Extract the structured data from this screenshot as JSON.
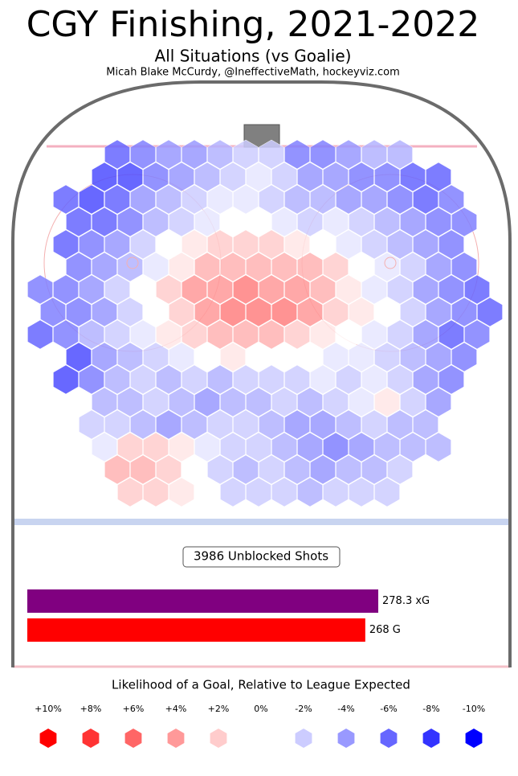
{
  "chart_data": [
    {
      "type": "hexbin",
      "title": "CGY Finishing, 2021-2022",
      "subtitle": "All Situations (vs Goalie)",
      "credit": "Micah Blake McCurdy, @IneffectiveMath, hockeyviz.com",
      "rows": [
        [
          null,
          null,
          null,
          -6,
          -5,
          -4,
          -4,
          -3,
          -2,
          -2,
          -5,
          -5,
          -4,
          -3,
          -3,
          null,
          null,
          null
        ],
        [
          null,
          null,
          -7,
          -7,
          -5,
          -4,
          -3,
          -2,
          -1,
          -2,
          -4,
          -4,
          -5,
          -5,
          -6,
          -6,
          null,
          null
        ],
        [
          null,
          -6,
          -7,
          -6,
          -4,
          -3,
          -2,
          -1,
          -1,
          -2,
          -3,
          -3,
          -4,
          -4,
          -5,
          -6,
          -5,
          null
        ],
        [
          null,
          -6,
          -6,
          -5,
          -3,
          -2,
          -1,
          0,
          0,
          -1,
          -2,
          -1,
          -2,
          -3,
          -4,
          -5,
          -5,
          null
        ],
        [
          null,
          -6,
          -5,
          -4,
          -2,
          0,
          1,
          2,
          2,
          2,
          1,
          0,
          -1,
          -2,
          -3,
          -4,
          -5,
          null
        ],
        [
          null,
          -5,
          -4,
          -3,
          -1,
          1,
          3,
          3,
          3,
          3,
          3,
          2,
          0,
          -1,
          -2,
          -4,
          -5,
          null
        ],
        [
          -5,
          -5,
          -4,
          -2,
          0,
          2,
          4,
          4,
          5,
          4,
          4,
          3,
          1,
          -1,
          -2,
          -4,
          -5,
          -6
        ],
        [
          -5,
          -5,
          -4,
          -2,
          0,
          2,
          4,
          5,
          5,
          5,
          4,
          2,
          1,
          0,
          -2,
          -4,
          -5,
          -6
        ],
        [
          -6,
          -5,
          -3,
          -2,
          -1,
          1,
          2,
          3,
          3,
          3,
          2,
          1,
          0,
          -1,
          -2,
          -4,
          -6,
          -5
        ],
        [
          null,
          -7,
          -4,
          -3,
          -2,
          -1,
          0,
          1,
          0,
          0,
          0,
          -1,
          -1,
          -2,
          -3,
          -4,
          -5,
          null
        ],
        [
          null,
          -7,
          -5,
          -3,
          -2,
          -3,
          -2,
          -3,
          -2,
          -2,
          -2,
          -1,
          -2,
          -1,
          -2,
          -4,
          -5,
          null
        ],
        [
          null,
          null,
          -3,
          -3,
          -2,
          -3,
          -4,
          -3,
          -3,
          -2,
          -3,
          -2,
          -1,
          1,
          -2,
          -4,
          null,
          null
        ],
        [
          null,
          null,
          -2,
          -2,
          -3,
          -4,
          -3,
          -2,
          -2,
          -3,
          -4,
          -4,
          -3,
          -2,
          -3,
          -3,
          null,
          null
        ],
        [
          null,
          null,
          -1,
          2,
          2,
          1,
          -1,
          -2,
          -2,
          -3,
          -4,
          -5,
          -4,
          -3,
          -3,
          -3,
          null,
          null
        ],
        [
          null,
          null,
          null,
          3,
          3,
          2,
          0,
          -2,
          -3,
          -2,
          -3,
          -4,
          -3,
          -3,
          -2,
          null,
          null,
          null
        ],
        [
          null,
          null,
          null,
          2,
          2,
          1,
          0,
          -2,
          -2,
          -2,
          -3,
          -2,
          -2,
          -2,
          null,
          null,
          null,
          null
        ]
      ],
      "legend_title": "Likelihood of a Goal, Relative to League Expected",
      "scale": [
        {
          "value": 10,
          "label": "+10%",
          "color": "#ff0000"
        },
        {
          "value": 8,
          "label": "+8%",
          "color": "#ff3333"
        },
        {
          "value": 6,
          "label": "+6%",
          "color": "#ff6666"
        },
        {
          "value": 4,
          "label": "+4%",
          "color": "#ff9999"
        },
        {
          "value": 2,
          "label": "+2%",
          "color": "#ffcccc"
        },
        {
          "value": 0,
          "label": "0%",
          "color": "#ffffff"
        },
        {
          "value": -2,
          "label": "-2%",
          "color": "#ccccff"
        },
        {
          "value": -4,
          "label": "-4%",
          "color": "#9999ff"
        },
        {
          "value": -6,
          "label": "-6%",
          "color": "#6666ff"
        },
        {
          "value": -8,
          "label": "-8%",
          "color": "#3333ff"
        },
        {
          "value": -10,
          "label": "-10%",
          "color": "#0000ff"
        }
      ]
    },
    {
      "type": "bar",
      "title": "3986 Unblocked Shots",
      "values": [
        278.3,
        268
      ],
      "value_labels": [
        "278.3 xG",
        "268 G"
      ],
      "colors": [
        "#800080",
        "#ff0000"
      ]
    }
  ]
}
